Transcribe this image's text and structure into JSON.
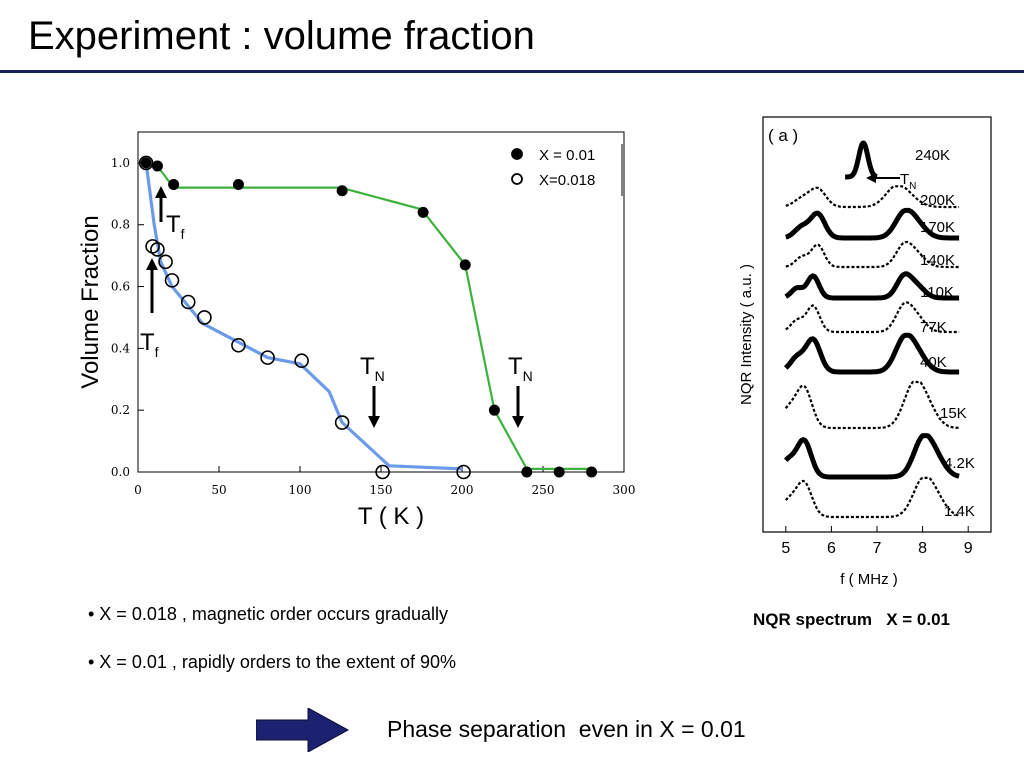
{
  "slide": {
    "title": "Experiment :  volume fraction",
    "bullets": [
      "• X = 0.018 , magnetic order occurs gradually",
      "• X = 0.01 , rapidly orders to the extent of 90%"
    ],
    "conclusion": "Phase separation  even in X = 0.01",
    "nqr_caption": "NQR spectrum   X = 0.01",
    "colors": {
      "title_rule": "#1a1f5c",
      "arrow": "#1c2170",
      "green": "#3bb23b",
      "blue": "#6b9be8"
    }
  },
  "chart_data": [
    {
      "type": "scatter",
      "xlabel": "T ( K )",
      "ylabel": "Volume Fraction",
      "xlim": [
        0,
        300
      ],
      "ylim": [
        0,
        1.1
      ],
      "xticks": [
        "0",
        "50",
        "100",
        "150",
        "200",
        "250",
        "300"
      ],
      "yticks": [
        "0.0",
        "0.2",
        "0.4",
        "0.6",
        "0.8",
        "1.0"
      ],
      "legend": {
        "placement": "top-right",
        "entries": [
          "X = 0.01",
          "X=0.018"
        ]
      },
      "series": [
        {
          "name": "X = 0.01",
          "marker": "filled-circle",
          "points": [
            [
              5,
              1.0
            ],
            [
              12,
              0.99
            ],
            [
              22,
              0.93
            ],
            [
              62,
              0.93
            ],
            [
              126,
              0.91
            ],
            [
              176,
              0.84
            ],
            [
              202,
              0.67
            ],
            [
              220,
              0.2
            ],
            [
              240,
              0.0
            ],
            [
              260,
              0.0
            ],
            [
              280,
              0.0
            ]
          ],
          "fit": [
            [
              5,
              1.0
            ],
            [
              12,
              0.99
            ],
            [
              22,
              0.92
            ],
            [
              125,
              0.92
            ],
            [
              175,
              0.85
            ],
            [
              202,
              0.67
            ],
            [
              220,
              0.2
            ],
            [
              240,
              0.01
            ],
            [
              280,
              0.01
            ]
          ]
        },
        {
          "name": "X=0.018",
          "marker": "open-circle",
          "points": [
            [
              5,
              1.0
            ],
            [
              9,
              0.73
            ],
            [
              12,
              0.72
            ],
            [
              17,
              0.68
            ],
            [
              21,
              0.62
            ],
            [
              31,
              0.55
            ],
            [
              41,
              0.5
            ],
            [
              62,
              0.41
            ],
            [
              80,
              0.37
            ],
            [
              101,
              0.36
            ],
            [
              126,
              0.16
            ],
            [
              151,
              0.0
            ],
            [
              201,
              0.0
            ]
          ],
          "fit": [
            [
              5,
              1.0
            ],
            [
              10,
              0.8
            ],
            [
              14,
              0.68
            ],
            [
              21,
              0.6
            ],
            [
              40,
              0.48
            ],
            [
              62,
              0.42
            ],
            [
              80,
              0.37
            ],
            [
              100,
              0.35
            ],
            [
              118,
              0.26
            ],
            [
              126,
              0.16
            ],
            [
              155,
              0.02
            ],
            [
              200,
              0.01
            ]
          ]
        }
      ],
      "annotations": [
        {
          "text": "T",
          "sub": "f",
          "x": 15,
          "arrow": "up"
        },
        {
          "text": "T",
          "sub": "f",
          "x": 9,
          "arrow": "up"
        },
        {
          "text": "T",
          "sub": "N",
          "x": 146,
          "arrow": "down"
        },
        {
          "text": "T",
          "sub": "N",
          "x": 236,
          "arrow": "down"
        }
      ]
    },
    {
      "type": "line",
      "panel_label": "( a )",
      "xlabel": "f ( MHz )",
      "ylabel": "NQR Intensity  ( a.u. )",
      "xlim": [
        4.5,
        9.5
      ],
      "xticks": [
        "5",
        "6",
        "7",
        "8",
        "9"
      ],
      "series": [
        {
          "name": "240K",
          "peaks_mhz": [
            6.7
          ]
        },
        {
          "name": "200K",
          "peaks_mhz": [
            5.7,
            7.4
          ]
        },
        {
          "name": "170K",
          "peaks_mhz": [
            5.7,
            7.6
          ]
        },
        {
          "name": "140K",
          "peaks_mhz": [
            5.7,
            7.6
          ]
        },
        {
          "name": "110K",
          "peaks_mhz": [
            5.6,
            7.6
          ]
        },
        {
          "name": "77K",
          "peaks_mhz": [
            5.6,
            7.6
          ]
        },
        {
          "name": "40K",
          "peaks_mhz": [
            5.6,
            7.6
          ]
        },
        {
          "name": "15K",
          "peaks_mhz": [
            5.4,
            7.8
          ]
        },
        {
          "name": "4.2K",
          "peaks_mhz": [
            5.4,
            8.0
          ]
        },
        {
          "name": "1.4K",
          "peaks_mhz": [
            5.4,
            8.0
          ]
        }
      ],
      "annotations": [
        {
          "text": "T",
          "sub": "N",
          "arrow": "left"
        }
      ]
    }
  ]
}
